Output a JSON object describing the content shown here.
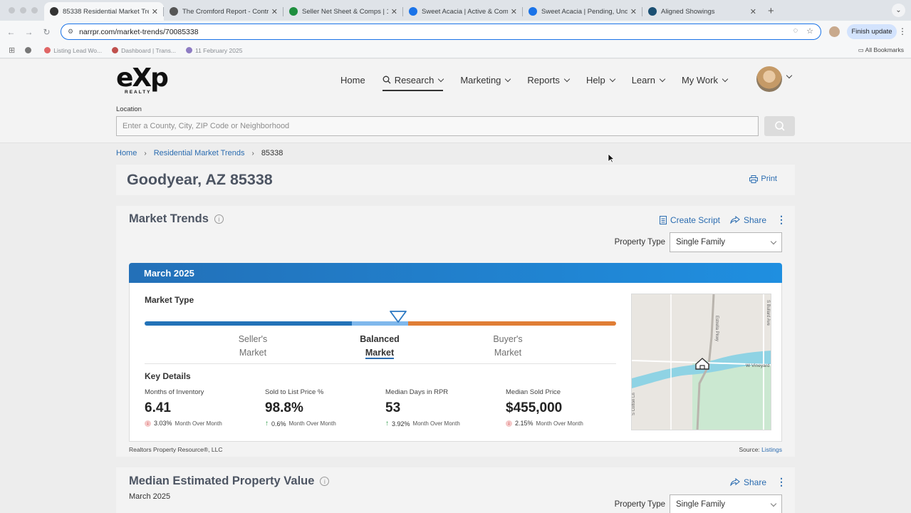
{
  "browser": {
    "tabs": [
      {
        "title": "85338 Residential Market Tre",
        "color": "#333333",
        "active": true
      },
      {
        "title": "The Cromford Report - Contr",
        "color": "#555555",
        "active": false
      },
      {
        "title": "Seller Net Sheet & Comps | 1",
        "color": "#1e8e3e",
        "active": false
      },
      {
        "title": "Sweet Acacia | Active & Com",
        "color": "#1a73e8",
        "active": false
      },
      {
        "title": "Sweet Acacia | Pending, Und",
        "color": "#1a73e8",
        "active": false
      },
      {
        "title": "Aligned Showings",
        "color": "#1b4f72",
        "active": false
      }
    ],
    "url": "narrpr.com/market-trends/70085338",
    "finish_update": "Finish update",
    "bookmarks": [
      {
        "label": "",
        "color": "#777777"
      },
      {
        "label": "Listing Lead Wo...",
        "color": "#e06666"
      },
      {
        "label": "Dashboard | Trans...",
        "color": "#c0504d"
      },
      {
        "label": "11 February 2025",
        "color": "#8e7cc3"
      }
    ],
    "all_bookmarks": "All Bookmarks"
  },
  "header": {
    "logo_main": "eXp",
    "logo_sub": "REALTY",
    "nav": [
      {
        "label": "Home",
        "chevron": false,
        "active": false
      },
      {
        "label": "Research",
        "chevron": true,
        "active": true
      },
      {
        "label": "Marketing",
        "chevron": true,
        "active": false
      },
      {
        "label": "Reports",
        "chevron": true,
        "active": false
      },
      {
        "label": "Help",
        "chevron": true,
        "active": false
      },
      {
        "label": "Learn",
        "chevron": true,
        "active": false
      },
      {
        "label": "My Work",
        "chevron": true,
        "active": false
      }
    ],
    "location_label": "Location",
    "location_placeholder": "Enter a County, City, ZIP Code or Neighborhood"
  },
  "breadcrumb": [
    "Home",
    "Residential Market Trends",
    "85338"
  ],
  "page_title": "Goodyear, AZ 85338",
  "print_label": "Print",
  "market_trends": {
    "title": "Market Trends",
    "create_script": "Create Script",
    "share": "Share",
    "property_type_label": "Property Type",
    "property_type_value": "Single Family",
    "month": "March 2025",
    "market_type_label": "Market Type",
    "gauge": {
      "sellers": "Seller's",
      "balanced": "Balanced",
      "buyers": "Buyer's",
      "market": "Market"
    },
    "key_details_label": "Key Details",
    "stats": [
      {
        "name": "Months of Inventory",
        "value": "6.41",
        "change": "3.03%",
        "direction": "down",
        "period": "Month Over Month"
      },
      {
        "name": "Sold to List Price %",
        "value": "98.8%",
        "change": "0.6%",
        "direction": "up",
        "period": "Month Over Month"
      },
      {
        "name": "Median Days in RPR",
        "value": "53",
        "change": "3.92%",
        "direction": "up",
        "period": "Month Over Month"
      },
      {
        "name": "Median Sold Price",
        "value": "$455,000",
        "change": "2.15%",
        "direction": "down",
        "period": "Month Over Month"
      }
    ],
    "map_labels": {
      "road1": "Estrella Pkwy",
      "road2": "S Bullard Ave",
      "road3": "W Vineyard",
      "road4": "S Cotton Ln"
    },
    "footer_left": "Realtors Property Resource®, LLC",
    "source_prefix": "Source:",
    "source_link": "Listings"
  },
  "median_value": {
    "title": "Median Estimated Property Value",
    "subtitle": "March 2025",
    "share": "Share",
    "property_type_label": "Property Type",
    "property_type_value": "Single Family"
  }
}
